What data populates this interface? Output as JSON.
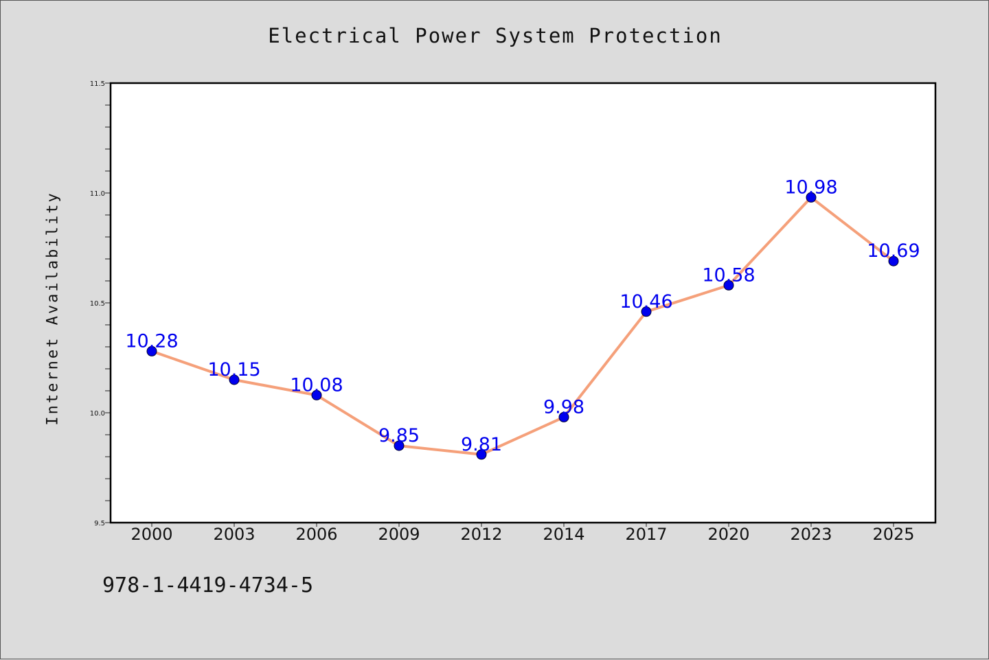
{
  "header": {
    "title": "Electrical Power System Protection"
  },
  "footer": {
    "isbn": "978-1-4419-4734-5"
  },
  "chart_data": {
    "type": "line",
    "title": "Electrical Power System Protection",
    "xlabel": "",
    "ylabel": "Internet Availability",
    "categories": [
      "2000",
      "2003",
      "2006",
      "2009",
      "2012",
      "2014",
      "2017",
      "2020",
      "2023",
      "2025"
    ],
    "series": [
      {
        "values": [
          10.28,
          10.15,
          10.08,
          9.85,
          9.81,
          9.98,
          10.46,
          10.58,
          10.98,
          10.69
        ]
      }
    ],
    "data_labels": [
      "10.28",
      "10.15",
      "10.08",
      "9.85",
      "9.81",
      "9.98",
      "10.46",
      "10.58",
      "10.98",
      "10.69"
    ],
    "ylim": [
      9.5,
      11.5
    ],
    "yticks": [
      "9.5",
      "10.0",
      "10.5",
      "11.0",
      "11.5"
    ],
    "grid": false,
    "colors": {
      "line": "#f5a07a",
      "marker": "#0000ee",
      "label": "#0000ee",
      "plot_background": "#ffffff",
      "page_background": "#dcdcdc"
    }
  }
}
